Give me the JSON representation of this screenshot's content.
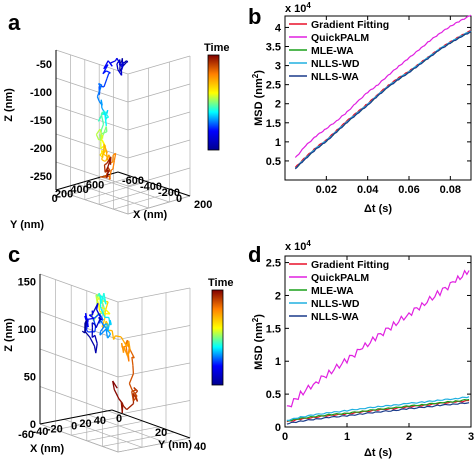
{
  "panels": [
    {
      "label": "a"
    },
    {
      "label": "b"
    },
    {
      "label": "c"
    },
    {
      "label": "d"
    }
  ],
  "chart_data": [
    {
      "id": "a",
      "type": "line3d",
      "zlabel": "Z (nm)",
      "xlabel": "X (nm)",
      "ylabel": "Y (nm)",
      "z_ticks": [
        "-50",
        "-100",
        "-150",
        "-200",
        "-250"
      ],
      "y_ticks": [
        "0",
        "200",
        "400",
        "600"
      ],
      "x_ticks": [
        "200",
        "0",
        "-200",
        "-400",
        "-600"
      ],
      "colorbar_label": "Time",
      "colormap": [
        "#00008f",
        "#0000ff",
        "#00ffff",
        "#ffff00",
        "#ff8000",
        "#800000"
      ]
    },
    {
      "id": "b",
      "type": "line",
      "xlabel": "Δt (s)",
      "ylabel": "MSD (nm²)",
      "ylabel_main": "MSD (nm",
      "ylabel_sup": "2",
      "ylabel_end": ")",
      "exponent": "x 10",
      "exponent_sup": "4",
      "xlim": [
        0,
        0.09
      ],
      "ylim": [
        0,
        4.3
      ],
      "x_ticks": [
        "0.02",
        "0.04",
        "0.06",
        "0.08"
      ],
      "y_ticks": [
        "0.5",
        "1",
        "1.5",
        "2",
        "2.5",
        "3",
        "3.5",
        "4"
      ],
      "legend_position": "top-left",
      "x": [
        0.005,
        0.01,
        0.015,
        0.02,
        0.025,
        0.03,
        0.035,
        0.04,
        0.045,
        0.05,
        0.055,
        0.06,
        0.065,
        0.07,
        0.075,
        0.08,
        0.085,
        0.09
      ],
      "series": [
        {
          "name": "Gradient Fitting",
          "color": "#e8102a",
          "values": [
            0.33,
            0.6,
            0.85,
            1.05,
            1.3,
            1.55,
            1.78,
            2.0,
            2.25,
            2.48,
            2.68,
            2.85,
            3.05,
            3.25,
            3.45,
            3.62,
            3.78,
            3.92
          ]
        },
        {
          "name": "QuickPALM",
          "color": "#e020e0",
          "values": [
            0.58,
            0.9,
            1.15,
            1.35,
            1.55,
            1.78,
            2.05,
            2.3,
            2.5,
            2.75,
            2.98,
            3.2,
            3.42,
            3.65,
            3.85,
            4.03,
            4.18,
            4.32
          ]
        },
        {
          "name": "MLE-WA",
          "color": "#1aa01a",
          "values": [
            0.3,
            0.57,
            0.82,
            1.02,
            1.27,
            1.52,
            1.75,
            1.97,
            2.22,
            2.45,
            2.65,
            2.83,
            3.03,
            3.23,
            3.43,
            3.6,
            3.76,
            3.9
          ]
        },
        {
          "name": "NLLS-WD",
          "color": "#20b0e0",
          "values": [
            0.31,
            0.58,
            0.83,
            1.03,
            1.28,
            1.53,
            1.76,
            1.98,
            2.23,
            2.46,
            2.66,
            2.84,
            3.04,
            3.24,
            3.44,
            3.61,
            3.77,
            3.91
          ]
        },
        {
          "name": "NLLS-WA",
          "color": "#1a3a8a",
          "values": [
            0.3,
            0.56,
            0.81,
            1.01,
            1.26,
            1.51,
            1.74,
            1.96,
            2.21,
            2.44,
            2.64,
            2.82,
            3.02,
            3.22,
            3.42,
            3.59,
            3.75,
            3.89
          ]
        }
      ]
    },
    {
      "id": "c",
      "type": "line3d",
      "zlabel": "Z (nm)",
      "xlabel": "X (nm)",
      "ylabel": "Y (nm)",
      "z_ticks": [
        "0",
        "50",
        "100",
        "150"
      ],
      "x_ticks": [
        "-60",
        "-40",
        "-20",
        "0",
        "20",
        "40"
      ],
      "y_ticks": [
        "0",
        "20",
        "40"
      ],
      "colorbar_label": "Time",
      "colormap": [
        "#00008f",
        "#0000ff",
        "#00ffff",
        "#ffff00",
        "#ff8000",
        "#800000"
      ]
    },
    {
      "id": "d",
      "type": "line",
      "xlabel": "Δt (s)",
      "ylabel": "MSD (nm²)",
      "ylabel_main": "MSD (nm",
      "ylabel_sup": "2",
      "ylabel_end": ")",
      "exponent": "x 10",
      "exponent_sup": "4",
      "xlim": [
        0,
        3
      ],
      "ylim": [
        0,
        2.6
      ],
      "x_ticks": [
        "0",
        "1",
        "2",
        "3"
      ],
      "y_ticks": [
        "0",
        "0.5",
        "1",
        "1.5",
        "2",
        "2.5"
      ],
      "legend_position": "top-left",
      "x": [
        0.03,
        0.25,
        0.5,
        0.75,
        1.0,
        1.25,
        1.5,
        1.75,
        2.0,
        2.25,
        2.5,
        2.75,
        2.97
      ],
      "series": [
        {
          "name": "Gradient Fitting",
          "color": "#e8102a",
          "values": [
            0.08,
            0.12,
            0.15,
            0.18,
            0.2,
            0.23,
            0.26,
            0.28,
            0.31,
            0.33,
            0.36,
            0.38,
            0.4
          ]
        },
        {
          "name": "QuickPALM",
          "color": "#e020e0",
          "values": [
            0.28,
            0.5,
            0.68,
            0.85,
            1.02,
            1.2,
            1.38,
            1.55,
            1.72,
            1.88,
            2.05,
            2.22,
            2.38
          ]
        },
        {
          "name": "MLE-WA",
          "color": "#1aa01a",
          "values": [
            0.09,
            0.13,
            0.16,
            0.19,
            0.21,
            0.24,
            0.27,
            0.29,
            0.32,
            0.34,
            0.37,
            0.39,
            0.42
          ]
        },
        {
          "name": "NLLS-WD",
          "color": "#20b0e0",
          "values": [
            0.1,
            0.15,
            0.19,
            0.22,
            0.25,
            0.28,
            0.31,
            0.33,
            0.36,
            0.38,
            0.41,
            0.43,
            0.46
          ]
        },
        {
          "name": "NLLS-WA",
          "color": "#1a3a8a",
          "values": [
            0.05,
            0.09,
            0.12,
            0.15,
            0.17,
            0.2,
            0.23,
            0.25,
            0.28,
            0.3,
            0.33,
            0.35,
            0.37
          ]
        }
      ]
    }
  ]
}
